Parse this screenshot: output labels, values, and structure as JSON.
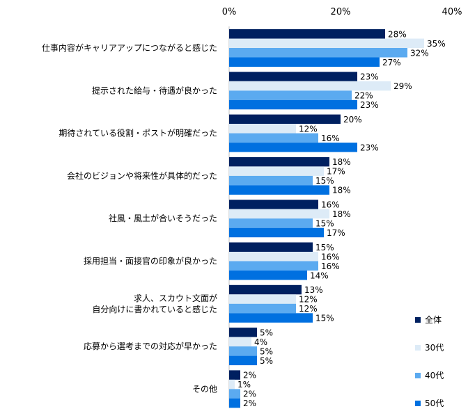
{
  "chart_data": {
    "type": "bar",
    "orientation": "horizontal",
    "title": "",
    "xlabel": "",
    "ylabel": "",
    "xlim": [
      0,
      40
    ],
    "ticks": [
      {
        "value": 0,
        "label": "0%"
      },
      {
        "value": 20,
        "label": "20%"
      },
      {
        "value": 40,
        "label": "40%"
      }
    ],
    "grid": false,
    "legend_position": "bottom-right",
    "categories": [
      {
        "lines": [
          "仕事内容がキャリアアップにつながると感じた"
        ]
      },
      {
        "lines": [
          "提示された給与・待遇が良かった"
        ]
      },
      {
        "lines": [
          "期待されている役割・ポストが明確だった"
        ]
      },
      {
        "lines": [
          "会社のビジョンや将来性が具体的だった"
        ]
      },
      {
        "lines": [
          "社風・風土が合いそうだった"
        ]
      },
      {
        "lines": [
          "採用担当・面接官の印象が良かった"
        ]
      },
      {
        "lines": [
          "求人、スカウト文面が",
          "自分向けに書かれていると感じた"
        ]
      },
      {
        "lines": [
          "応募から選考までの対応が早かった"
        ]
      },
      {
        "lines": [
          "その他"
        ]
      }
    ],
    "series": [
      {
        "name": "全体",
        "color": "#002060",
        "values": [
          28,
          23,
          20,
          18,
          16,
          15,
          13,
          5,
          2
        ],
        "labels": [
          "28%",
          "23%",
          "20%",
          "18%",
          "16%",
          "15%",
          "13%",
          "5%",
          "2%"
        ]
      },
      {
        "name": "30代",
        "color": "#DDEBF7",
        "values": [
          35,
          29,
          12,
          17,
          18,
          16,
          12,
          4,
          1
        ],
        "labels": [
          "35%",
          "29%",
          "12%",
          "17%",
          "18%",
          "16%",
          "12%",
          "4%",
          "1%"
        ]
      },
      {
        "name": "40代",
        "color": "#5BAAF0",
        "values": [
          32,
          22,
          16,
          15,
          15,
          16,
          12,
          5,
          2
        ],
        "labels": [
          "32%",
          "22%",
          "16%",
          "15%",
          "15%",
          "16%",
          "12%",
          "5%",
          "2%"
        ]
      },
      {
        "name": "50代",
        "color": "#0070E0",
        "values": [
          27,
          23,
          23,
          18,
          17,
          14,
          15,
          5,
          2
        ],
        "labels": [
          "27%",
          "23%",
          "23%",
          "18%",
          "17%",
          "14%",
          "15%",
          "5%",
          "2%"
        ]
      }
    ]
  }
}
